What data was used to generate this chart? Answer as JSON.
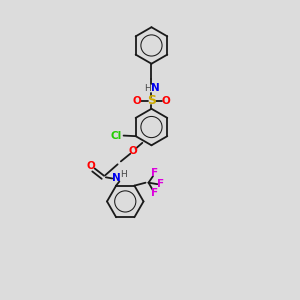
{
  "bg_color": "#dcdcdc",
  "bond_color": "#1a1a1a",
  "colors": {
    "N": "#0000ee",
    "O": "#ff0000",
    "S": "#ccaa00",
    "Cl": "#22cc00",
    "F": "#dd00dd",
    "H": "#444444",
    "C": "#1a1a1a"
  },
  "lw": 1.3,
  "ring_r": 0.62
}
